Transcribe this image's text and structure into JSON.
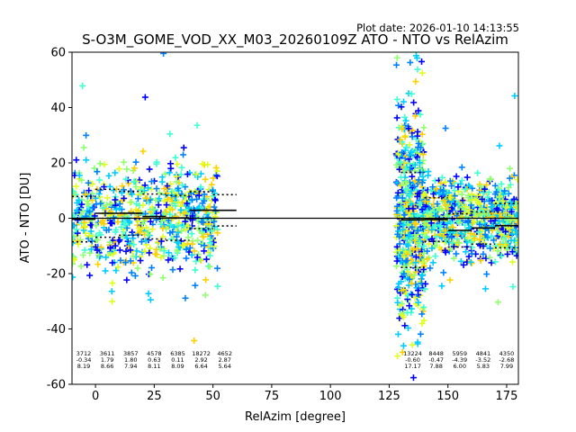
{
  "plot_date": "Plot date: 2026-01-10 14:13:55",
  "chart_data": {
    "type": "scatter",
    "title": "S-O3M_GOME_VOD_XX_M03_20260109Z ATO - NTO vs RelAzim",
    "xlabel": "RelAzim [degree]",
    "ylabel": "ATO - NTO [DU]",
    "xlim": [
      -10,
      180
    ],
    "ylim": [
      -60,
      60
    ],
    "xticks": [
      0,
      25,
      50,
      75,
      100,
      125,
      150,
      175
    ],
    "yticks": [
      -60,
      -40,
      -20,
      0,
      20,
      40,
      60
    ],
    "grid": false,
    "marker": "+",
    "colormap": [
      "#0000ff",
      "#0080ff",
      "#00ccff",
      "#40ffd0",
      "#90ff70",
      "#e0ff20",
      "#ffd000"
    ],
    "zero_line": 0,
    "bins": [
      {
        "xmin": -10,
        "xmax": 0,
        "mean": -0.34,
        "std": 8.19
      },
      {
        "xmin": 0,
        "xmax": 10,
        "mean": 1.79,
        "std": 8.66
      },
      {
        "xmin": 10,
        "xmax": 20,
        "mean": 1.8,
        "std": 7.94
      },
      {
        "xmin": 20,
        "xmax": 30,
        "mean": 0.63,
        "std": 8.11
      },
      {
        "xmin": 30,
        "xmax": 40,
        "mean": 0.11,
        "std": 8.09
      },
      {
        "xmin": 40,
        "xmax": 50,
        "mean": 2.92,
        "std": 6.64
      },
      {
        "xmin": 50,
        "xmax": 60,
        "mean": 2.87,
        "std": 5.64
      },
      {
        "xmin": 130,
        "xmax": 140,
        "mean": -0.6,
        "std": 17.17
      },
      {
        "xmin": 140,
        "xmax": 150,
        "mean": -0.47,
        "std": 7.88
      },
      {
        "xmin": 150,
        "xmax": 160,
        "mean": -4.39,
        "std": 6.0
      },
      {
        "xmin": 160,
        "xmax": 170,
        "mean": -3.52,
        "std": 5.83
      },
      {
        "xmin": 170,
        "xmax": 180,
        "mean": -2.68,
        "std": 7.99
      }
    ],
    "stats": [
      {
        "x": -5,
        "n": "3712",
        "mean": "-0.34",
        "std": "8.19"
      },
      {
        "x": 5,
        "n": "3611",
        "mean": "1.79",
        "std": "8.66"
      },
      {
        "x": 15,
        "n": "3857",
        "mean": "1.80",
        "std": "7.94"
      },
      {
        "x": 25,
        "n": "4578",
        "mean": "0.63",
        "std": "8.11"
      },
      {
        "x": 35,
        "n": "6385",
        "mean": "0.11",
        "std": "8.09"
      },
      {
        "x": 45,
        "n": "18272",
        "mean": "2.92",
        "std": "6.64"
      },
      {
        "x": 55,
        "n": "4652",
        "mean": "2.87",
        "std": "5.64"
      },
      {
        "x": 135,
        "n": "13224",
        "mean": "-0.60",
        "std": "17.17"
      },
      {
        "x": 145,
        "n": "8448",
        "mean": "-0.47",
        "std": "7.88"
      },
      {
        "x": 155,
        "n": "5959",
        "mean": "-4.39",
        "std": "6.00"
      },
      {
        "x": 165,
        "n": "4841",
        "mean": "-3.52",
        "std": "5.83"
      },
      {
        "x": 175,
        "n": "4350",
        "mean": "-2.68",
        "std": "7.99"
      }
    ],
    "clusters": [
      {
        "x_range": [
          -10,
          52
        ],
        "spread": 20
      },
      {
        "x_range": [
          128,
          140
        ],
        "spread": 38
      },
      {
        "x_range": [
          140,
          180
        ],
        "spread": 14
      }
    ]
  }
}
